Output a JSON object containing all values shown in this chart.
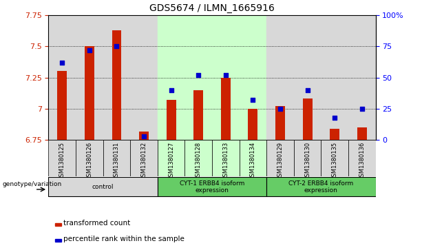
{
  "title": "GDS5674 / ILMN_1665916",
  "samples": [
    "GSM1380125",
    "GSM1380126",
    "GSM1380131",
    "GSM1380132",
    "GSM1380127",
    "GSM1380128",
    "GSM1380133",
    "GSM1380134",
    "GSM1380129",
    "GSM1380130",
    "GSM1380135",
    "GSM1380136"
  ],
  "bar_values": [
    7.3,
    7.5,
    7.63,
    6.82,
    7.07,
    7.15,
    7.25,
    7.0,
    7.02,
    7.08,
    6.84,
    6.85
  ],
  "dot_values": [
    62,
    72,
    75,
    3,
    40,
    52,
    52,
    32,
    25,
    40,
    18,
    25
  ],
  "bar_color": "#cc2200",
  "dot_color": "#0000cc",
  "ylim_left": [
    6.75,
    7.75
  ],
  "ylim_right": [
    0,
    100
  ],
  "yticks_left": [
    6.75,
    7.0,
    7.25,
    7.5,
    7.75
  ],
  "yticks_right": [
    0,
    25,
    50,
    75,
    100
  ],
  "ytick_labels_right": [
    "0",
    "25",
    "50",
    "75",
    "100%"
  ],
  "col_bg_colors": [
    "#d8d8d8",
    "#d8d8d8",
    "#d8d8d8",
    "#d8d8d8",
    "#ccffcc",
    "#ccffcc",
    "#ccffcc",
    "#ccffcc",
    "#d8d8d8",
    "#d8d8d8",
    "#d8d8d8",
    "#d8d8d8"
  ],
  "group_defs": [
    {
      "start": 0,
      "end": 3,
      "color": "#d8d8d8",
      "label": "control"
    },
    {
      "start": 4,
      "end": 7,
      "color": "#66cc66",
      "label": "CYT-1 ERBB4 isoform\nexpression"
    },
    {
      "start": 8,
      "end": 11,
      "color": "#66cc66",
      "label": "CYT-2 ERBB4 isoform\nexpression"
    }
  ],
  "legend_items": [
    {
      "color": "#cc2200",
      "label": "transformed count"
    },
    {
      "color": "#0000cc",
      "label": "percentile rank within the sample"
    }
  ],
  "bar_bottom": 6.75,
  "bar_width": 0.35,
  "grid_lines": [
    7.0,
    7.25,
    7.5
  ],
  "plot_bg": "#e8e8e8",
  "fig_bg": "#ffffff"
}
